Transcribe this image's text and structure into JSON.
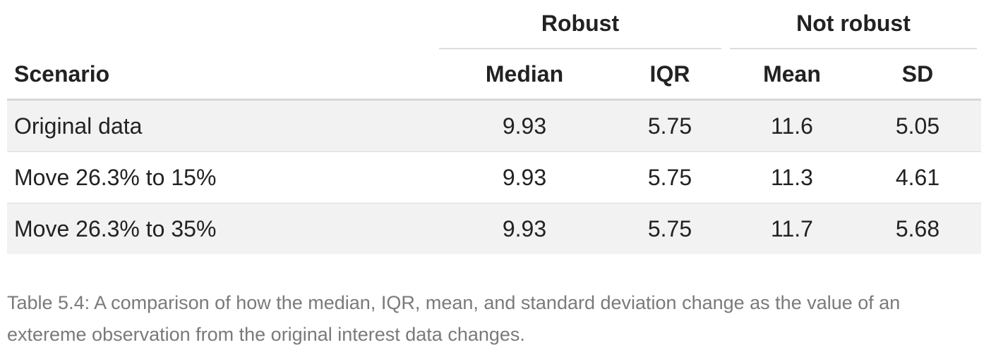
{
  "table": {
    "spanners": [
      {
        "label": "Robust"
      },
      {
        "label": "Not robust"
      }
    ],
    "columns": [
      "Scenario",
      "Median",
      "IQR",
      "Mean",
      "SD"
    ],
    "rows": [
      {
        "scenario": "Original data",
        "median": "9.93",
        "iqr": "5.75",
        "mean": "11.6",
        "sd": "5.05"
      },
      {
        "scenario": "Move 26.3% to 15%",
        "median": "9.93",
        "iqr": "5.75",
        "mean": "11.3",
        "sd": "4.61"
      },
      {
        "scenario": "Move 26.3% to 35%",
        "median": "9.93",
        "iqr": "5.75",
        "mean": "11.7",
        "sd": "5.68"
      }
    ]
  },
  "caption": "Table 5.4: A comparison of how the median, IQR, mean, and standard deviation change as the value of an extereme observation from the original interest data changes."
}
